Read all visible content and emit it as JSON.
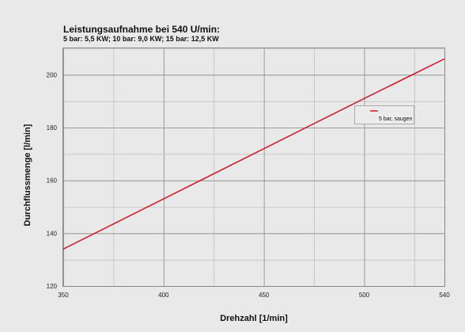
{
  "chart_data": {
    "type": "line",
    "title": "Leistungsaufnahme bei 540 U/min:",
    "subtitle": "5 bar: 5,5 KW; 10 bar: 9,0 KW; 15 bar: 12,5 KW",
    "xlabel": "Drehzahl [1/min]",
    "ylabel": "Durchflussmenge [l/min]",
    "xlim": [
      350,
      540
    ],
    "ylim": [
      120,
      210
    ],
    "x_ticks": [
      350,
      400,
      450,
      500,
      540
    ],
    "y_ticks": [
      120,
      140,
      160,
      180,
      200
    ],
    "x_tick_labels": [
      "350",
      "400",
      "450",
      "500",
      "540"
    ],
    "y_tick_labels": [
      "120",
      "140",
      "160",
      "180",
      "200"
    ],
    "grid": true,
    "legend_position": "right",
    "series": [
      {
        "name": "5 bar, saugen",
        "color": "#cc2229",
        "x": [
          350,
          500,
          540
        ],
        "y": [
          134,
          191,
          206
        ]
      }
    ]
  }
}
